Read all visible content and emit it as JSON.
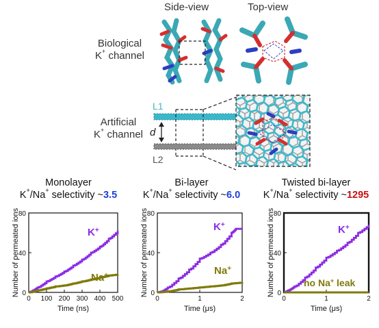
{
  "top": {
    "side_view_title": "Side-view",
    "top_view_title": "Top-view",
    "bio_label_line1": "Biological",
    "bio_label_line2": "channel",
    "art_label_line1": "Artificial",
    "art_label_line2": "channel",
    "k": "K",
    "plus": "+",
    "layer1": "L1",
    "layer2": "L2",
    "distance": "d"
  },
  "colors": {
    "k_series": "#8a2be2",
    "na_series": "#7f7a0a",
    "sel_mono": "#1f3fd6",
    "sel_bi": "#1f3fd6",
    "sel_twist": "#c81010",
    "layer1": "#3cb7c9",
    "layer2": "#808080"
  },
  "chart_data": [
    {
      "type": "line",
      "title": "Monolayer",
      "subtitle_prefix": "K",
      "subtitle_mid": "/Na",
      "subtitle_suffix": " selectivity ~",
      "selectivity": "3.5",
      "xlabel": "Time (ns)",
      "ylabel": "Number of permeated ions",
      "xlim": [
        0,
        500
      ],
      "ylim": [
        0,
        80
      ],
      "xticks": [
        "0",
        "100",
        "200",
        "300",
        "400",
        "500"
      ],
      "yticks": [
        "0",
        "40",
        "80"
      ],
      "series": [
        {
          "name": "K",
          "sup": "+",
          "x": [
            0,
            25,
            50,
            100,
            150,
            200,
            250,
            300,
            350,
            400,
            450,
            500
          ],
          "y": [
            0,
            2,
            5,
            11,
            16,
            21,
            27,
            33,
            40,
            46,
            54,
            62
          ]
        },
        {
          "name": "Na",
          "sup": "+",
          "x": [
            0,
            50,
            100,
            150,
            200,
            250,
            300,
            350,
            400,
            450,
            500
          ],
          "y": [
            0,
            2,
            4,
            6,
            7,
            9,
            11,
            13,
            15,
            17,
            18
          ]
        }
      ]
    },
    {
      "type": "line",
      "title": "Bi-layer",
      "subtitle_prefix": "K",
      "subtitle_mid": "/Na",
      "subtitle_suffix": " selectivity ~",
      "selectivity": "6.0",
      "xlabel": "Time (μs)",
      "ylabel": "Number of permeated ions",
      "xlim": [
        0,
        2
      ],
      "ylim": [
        0,
        80
      ],
      "xticks": [
        "0",
        "1",
        "2"
      ],
      "yticks": [
        "0",
        "40",
        "80"
      ],
      "series": [
        {
          "name": "K",
          "sup": "+",
          "x": [
            0,
            0.1,
            0.25,
            0.5,
            0.75,
            1.0,
            1.25,
            1.5,
            1.75,
            1.85,
            2.0
          ],
          "y": [
            0,
            1,
            5,
            14,
            23,
            34,
            40,
            48,
            60,
            64,
            64
          ]
        },
        {
          "name": "Na",
          "sup": "+",
          "x": [
            0,
            0.25,
            0.5,
            0.75,
            1.0,
            1.25,
            1.5,
            1.75,
            2.0
          ],
          "y": [
            0,
            1,
            3,
            4,
            5,
            6,
            7,
            9,
            10
          ]
        }
      ]
    },
    {
      "type": "line",
      "title": "Twisted bi-layer",
      "subtitle_prefix": "K",
      "subtitle_mid": "/Na",
      "subtitle_suffix": " selectivity ~",
      "selectivity": "1295",
      "xlabel": "Time (μs)",
      "ylabel": "Number of permeated ions",
      "xlim": [
        0,
        2
      ],
      "ylim": [
        0,
        80
      ],
      "xticks": [
        "0",
        "1",
        "2"
      ],
      "yticks": [
        "0",
        "40",
        "80"
      ],
      "annotation": "no Na",
      "annotation_sup": "+",
      "annotation_suffix": " leak",
      "series": [
        {
          "name": "K",
          "sup": "+",
          "x": [
            0,
            0.1,
            0.25,
            0.5,
            0.75,
            1.0,
            1.25,
            1.5,
            1.75,
            2.0
          ],
          "y": [
            0,
            2,
            6,
            15,
            25,
            35,
            42,
            50,
            60,
            68
          ]
        },
        {
          "name": "Na",
          "sup": "+",
          "x": [
            0,
            2.0
          ],
          "y": [
            0,
            0
          ]
        }
      ]
    }
  ]
}
